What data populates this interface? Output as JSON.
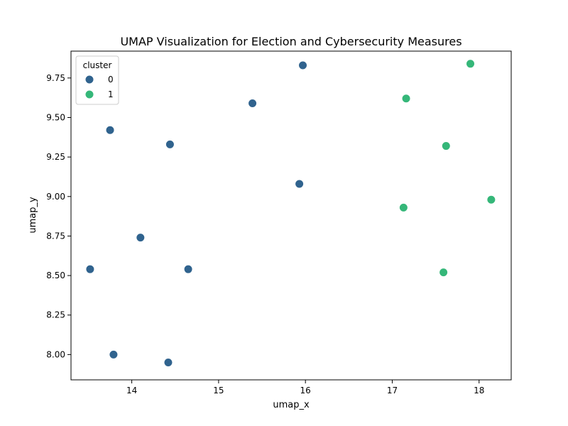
{
  "chart_data": {
    "type": "scatter",
    "title": "UMAP Visualization for Election and Cybersecurity Measures",
    "xlabel": "umap_x",
    "ylabel": "umap_y",
    "xlim": [
      13.3,
      18.37
    ],
    "ylim": [
      7.84,
      9.92
    ],
    "x_ticks": [
      14,
      15,
      16,
      17,
      18
    ],
    "x_tick_labels": [
      "14",
      "15",
      "16",
      "17",
      "18"
    ],
    "y_ticks": [
      8.0,
      8.25,
      8.5,
      8.75,
      9.0,
      9.25,
      9.5,
      9.75
    ],
    "y_tick_labels": [
      "8.00",
      "8.25",
      "8.50",
      "8.75",
      "9.00",
      "9.25",
      "9.50",
      "9.75"
    ],
    "grid": false,
    "legend": {
      "title": "cluster",
      "placement": "top-left",
      "entries": [
        {
          "label": "0",
          "color": "#30638e"
        },
        {
          "label": "1",
          "color": "#35b779"
        }
      ]
    },
    "series": [
      {
        "name": "0",
        "color": "#30638e",
        "points": [
          {
            "x": 15.97,
            "y": 9.83
          },
          {
            "x": 15.39,
            "y": 9.59
          },
          {
            "x": 13.75,
            "y": 9.42
          },
          {
            "x": 14.44,
            "y": 9.33
          },
          {
            "x": 15.93,
            "y": 9.08
          },
          {
            "x": 14.1,
            "y": 8.74
          },
          {
            "x": 13.52,
            "y": 8.54
          },
          {
            "x": 14.65,
            "y": 8.54
          },
          {
            "x": 13.79,
            "y": 8.0
          },
          {
            "x": 14.42,
            "y": 7.95
          }
        ]
      },
      {
        "name": "1",
        "color": "#35b779",
        "points": [
          {
            "x": 17.9,
            "y": 9.84
          },
          {
            "x": 17.16,
            "y": 9.62
          },
          {
            "x": 17.62,
            "y": 9.32
          },
          {
            "x": 18.14,
            "y": 8.98
          },
          {
            "x": 17.13,
            "y": 8.93
          },
          {
            "x": 17.59,
            "y": 8.52
          }
        ]
      }
    ]
  }
}
